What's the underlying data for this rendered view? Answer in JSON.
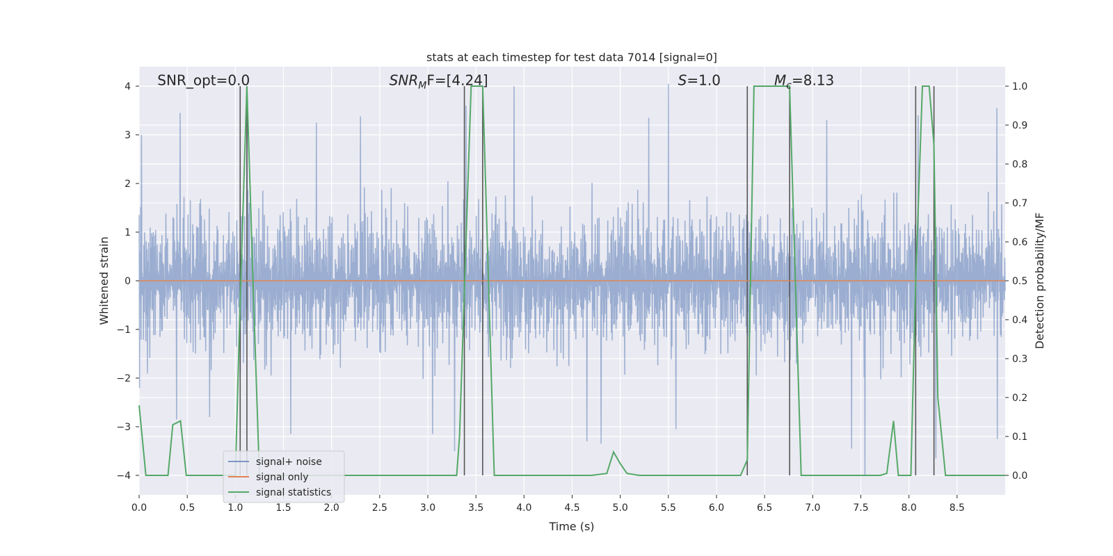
{
  "chart_data": {
    "type": "line",
    "title": "stats at each timestep for test data 7014 [signal=0]",
    "xlabel": "Time (s)",
    "ylabel_left": "Whitened strain",
    "ylabel_right": "Detection probability/MF",
    "xlim": [
      0,
      9.0
    ],
    "ylim_left": [
      -4.4,
      4.4
    ],
    "ylim_right": [
      -0.05,
      1.05
    ],
    "x_ticks": [
      "0.0",
      "0.5",
      "1.0",
      "1.5",
      "2.0",
      "2.5",
      "3.0",
      "3.5",
      "4.0",
      "4.5",
      "5.0",
      "5.5",
      "6.0",
      "6.5",
      "7.0",
      "7.5",
      "8.0",
      "8.5"
    ],
    "y_ticks_left": [
      "4",
      "3",
      "2",
      "1",
      "0",
      "−1",
      "−2",
      "−3",
      "−4"
    ],
    "y_ticks_right": [
      "1.0",
      "0.9",
      "0.8",
      "0.7",
      "0.6",
      "0.5",
      "0.4",
      "0.3",
      "0.2",
      "0.1",
      "0.0"
    ],
    "grid": true,
    "background": "#eaeaf2",
    "legend_position": "lower-left",
    "annotations": [
      {
        "id": "snr-opt",
        "text": "SNR_opt=0.0",
        "x": 0.19,
        "y": 4.12
      },
      {
        "id": "snr-mf",
        "text_main": "SNR",
        "text_sub": "M",
        "text_rest": "F=[4.24]",
        "x": 2.6,
        "y": 4.12
      },
      {
        "id": "s-value",
        "text_italic": "S",
        "text_rest": "=1.0",
        "x": 5.6,
        "y": 4.12
      },
      {
        "id": "mc-value",
        "text_italic": "M",
        "text_sub": "c",
        "text_rest": "=8.13",
        "x": 6.6,
        "y": 4.12
      }
    ],
    "vertical_lines": [
      1.05,
      1.12,
      3.38,
      3.57,
      6.32,
      6.76,
      8.07,
      8.26
    ],
    "vertical_line_range": [
      -4.0,
      4.0
    ],
    "series": [
      {
        "name": "signal+ noise",
        "color": "#4c72b0",
        "alpha": 0.5,
        "kind": "noise",
        "typical_amplitude": 1.55,
        "peak_high": [
          {
            "x": 0.03,
            "y": 3.0
          },
          {
            "x": 0.43,
            "y": 3.45
          },
          {
            "x": 1.12,
            "y": 4.0
          },
          {
            "x": 1.84,
            "y": 3.25
          },
          {
            "x": 2.3,
            "y": 3.38
          },
          {
            "x": 3.4,
            "y": 3.6
          },
          {
            "x": 3.9,
            "y": 4.0
          },
          {
            "x": 5.3,
            "y": 3.35
          },
          {
            "x": 5.5,
            "y": 4.05
          },
          {
            "x": 7.15,
            "y": 3.3
          },
          {
            "x": 8.1,
            "y": 3.4
          },
          {
            "x": 8.92,
            "y": 3.55
          }
        ],
        "peak_low": [
          {
            "x": 0.0,
            "y": -2.2
          },
          {
            "x": 0.39,
            "y": -2.85
          },
          {
            "x": 0.73,
            "y": -2.8
          },
          {
            "x": 1.57,
            "y": -3.15
          },
          {
            "x": 3.05,
            "y": -3.15
          },
          {
            "x": 3.28,
            "y": -3.5
          },
          {
            "x": 4.65,
            "y": -3.3
          },
          {
            "x": 4.8,
            "y": -3.35
          },
          {
            "x": 5.58,
            "y": -3.05
          },
          {
            "x": 7.4,
            "y": -3.45
          },
          {
            "x": 7.54,
            "y": -4.0
          },
          {
            "x": 8.28,
            "y": -3.65
          },
          {
            "x": 8.92,
            "y": -3.25
          }
        ]
      },
      {
        "name": "signal only",
        "color": "#dd8452",
        "kind": "line",
        "x": [
          0.0,
          9.0
        ],
        "y": [
          0.0,
          0.0
        ]
      },
      {
        "name": "signal statistics",
        "color": "#55a868",
        "kind": "line",
        "axis": "right",
        "x": [
          0.0,
          0.07,
          0.14,
          0.3,
          0.35,
          0.43,
          0.49,
          0.5,
          1.0,
          1.05,
          1.12,
          1.19,
          1.25,
          2.3,
          3.3,
          3.33,
          3.45,
          3.57,
          3.69,
          3.7,
          4.7,
          4.86,
          4.93,
          5.0,
          5.07,
          5.2,
          6.25,
          6.32,
          6.39,
          6.76,
          6.88,
          7.7,
          7.77,
          7.84,
          7.89,
          7.95,
          8.02,
          8.07,
          8.14,
          8.21,
          8.26,
          8.3,
          8.38,
          9.0
        ],
        "y": [
          0.18,
          0.0,
          0.0,
          0.0,
          0.13,
          0.14,
          0.0,
          0.0,
          0.0,
          0.45,
          1.0,
          0.45,
          0.0,
          0.0,
          0.0,
          0.1,
          1.0,
          1.0,
          0.0,
          0.0,
          0.0,
          0.005,
          0.06,
          0.03,
          0.005,
          0.0,
          0.0,
          0.04,
          1.0,
          1.0,
          0.0,
          0.0,
          0.005,
          0.14,
          0.0,
          0.0,
          0.0,
          0.5,
          1.0,
          1.0,
          0.85,
          0.2,
          0.0,
          0.0
        ]
      }
    ]
  }
}
